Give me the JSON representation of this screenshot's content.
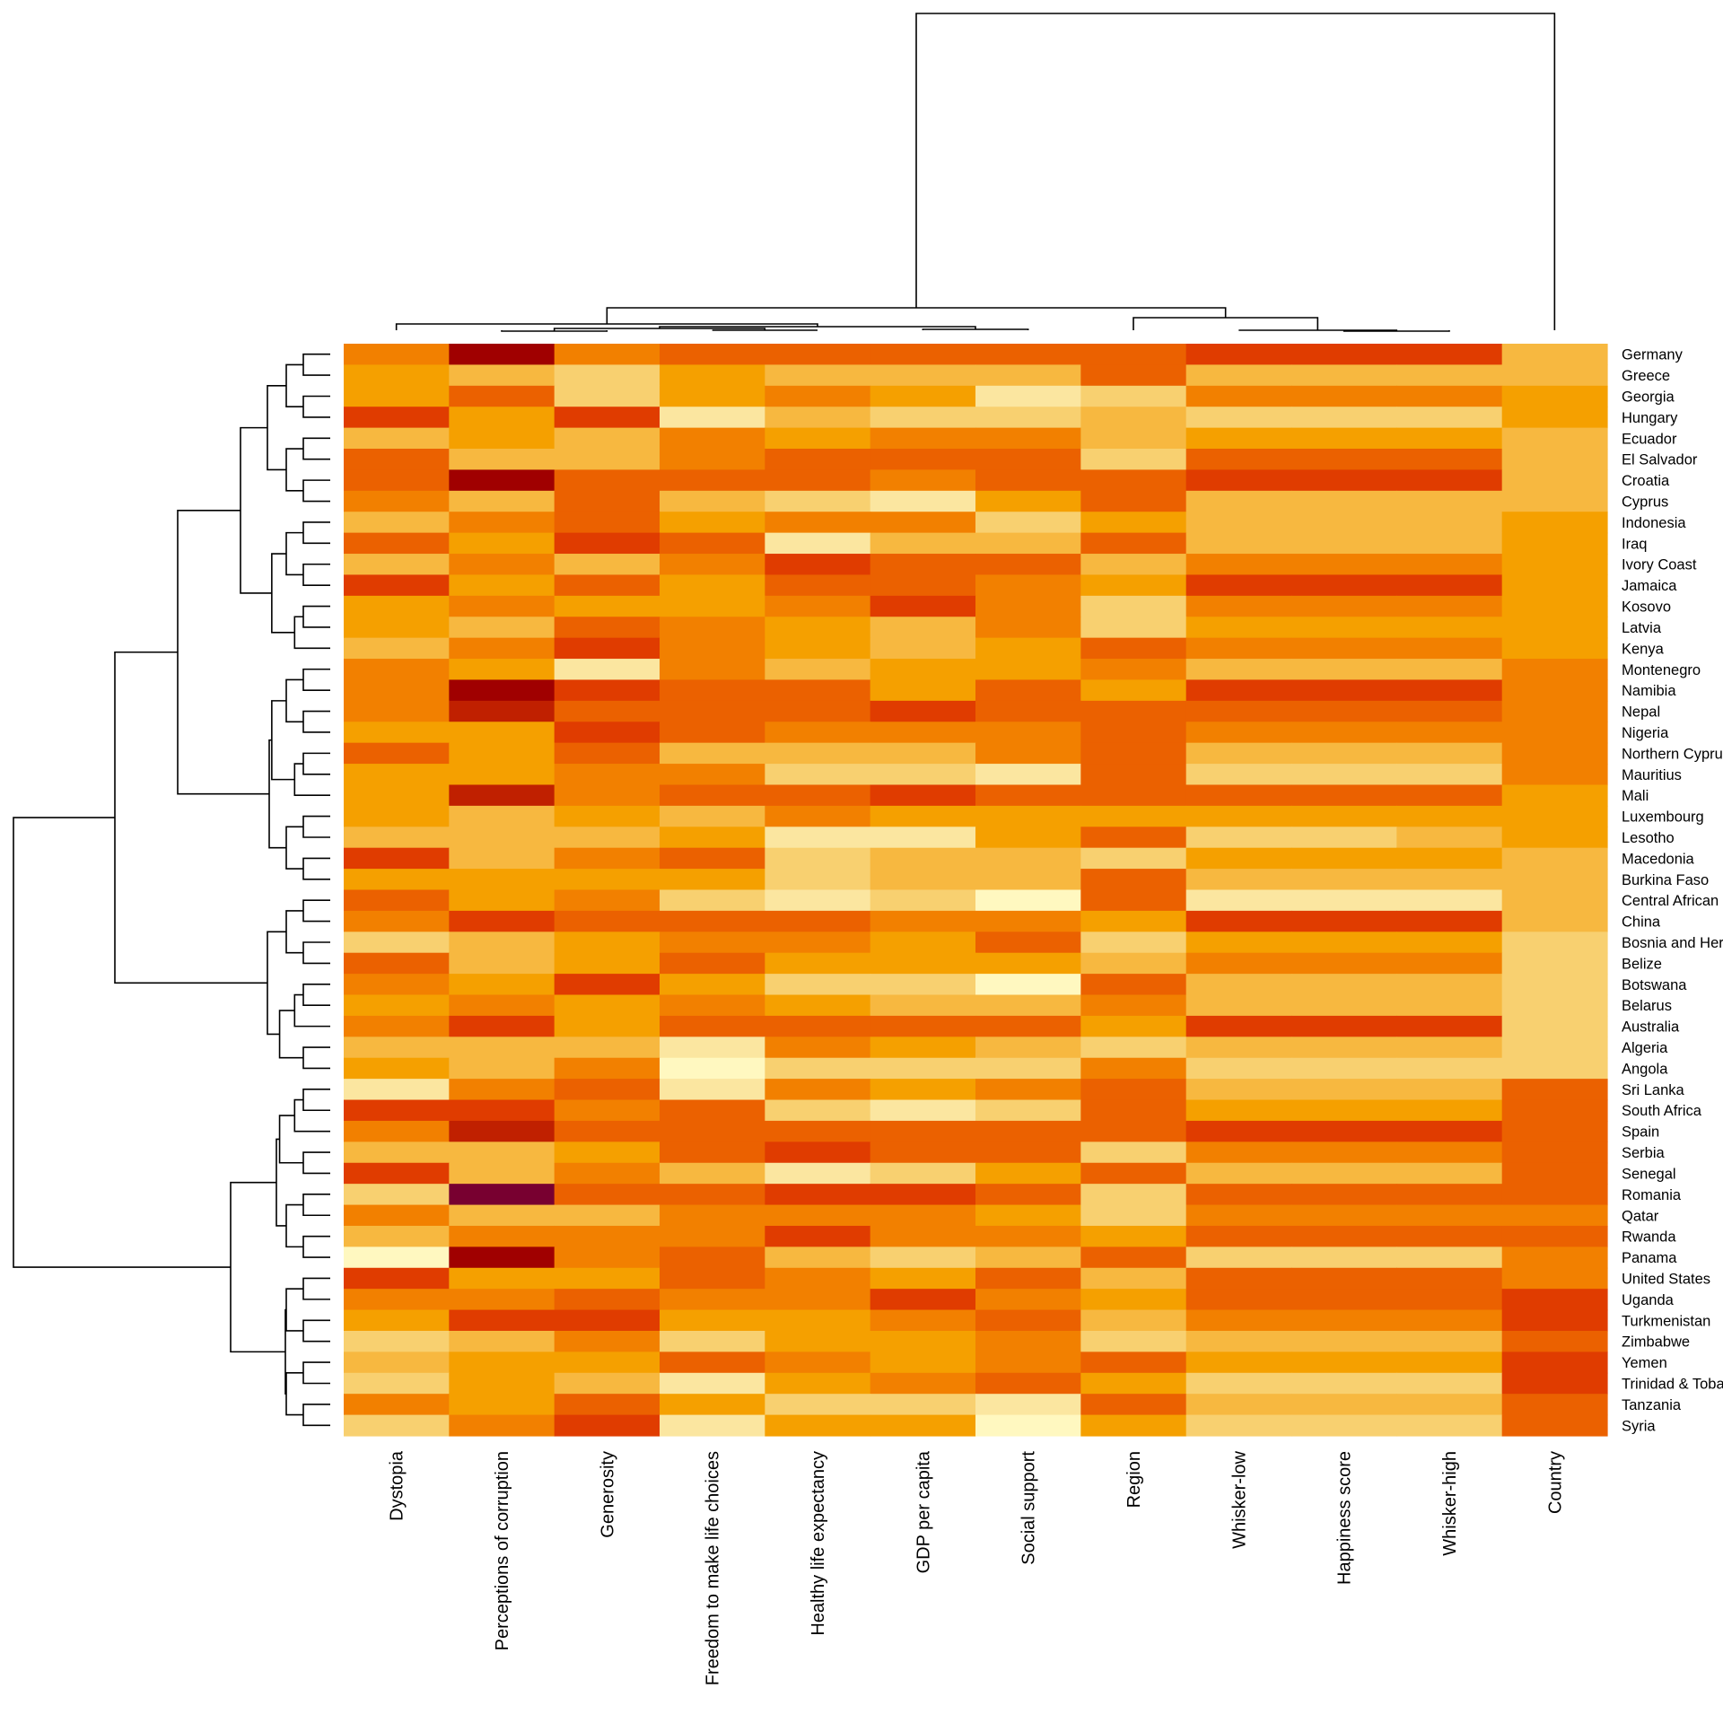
{
  "chart_data": {
    "type": "heatmap",
    "title": "",
    "value_scale": "relative level 0 (darkest red) to 10 (palest yellow)",
    "palette": [
      "#780030",
      "#A00000",
      "#C02000",
      "#E03C00",
      "#EB6100",
      "#F28000",
      "#F5A000",
      "#F7B840",
      "#F8D070",
      "#FBE6A0",
      "#FFF8C0"
    ],
    "columns": [
      "Dystopia",
      "Perceptions of corruption",
      "Generosity",
      "Freedom to make life choices",
      "Healthy life expectancy",
      "GDP per capita",
      "Social support",
      "Region",
      "Whisker-low",
      "Happiness score",
      "Whisker-high",
      "Country"
    ],
    "rows": [
      "Germany",
      "Greece",
      "Georgia",
      "Hungary",
      "Ecuador",
      "El Salvador",
      "Croatia",
      "Cyprus",
      "Indonesia",
      "Iraq",
      "Ivory Coast",
      "Jamaica",
      "Kosovo",
      "Latvia",
      "Kenya",
      "Montenegro",
      "Namibia",
      "Nepal",
      "Nigeria",
      "Northern Cyprus",
      "Mauritius",
      "Mali",
      "Luxembourg",
      "Lesotho",
      "Macedonia",
      "Burkina Faso",
      "Central African R",
      "China",
      "Bosnia and Herz",
      "Belize",
      "Botswana",
      "Belarus",
      "Australia",
      "Algeria",
      "Angola",
      "Sri Lanka",
      "South Africa",
      "Spain",
      "Serbia",
      "Senegal",
      "Romania",
      "Qatar",
      "Rwanda",
      "Panama",
      "United States",
      "Uganda",
      "Turkmenistan",
      "Zimbabwe",
      "Yemen",
      "Trinidad & Toba",
      "Tanzania",
      "Syria"
    ],
    "values": [
      [
        5,
        1,
        5,
        4,
        4,
        4,
        4,
        4,
        3,
        3,
        3,
        7
      ],
      [
        6,
        7,
        8,
        6,
        7,
        7,
        7,
        4,
        7,
        7,
        7,
        7
      ],
      [
        6,
        4,
        8,
        6,
        5,
        6,
        9,
        8,
        5,
        5,
        5,
        6
      ],
      [
        3,
        6,
        3,
        9,
        7,
        8,
        8,
        7,
        8,
        8,
        8,
        6
      ],
      [
        7,
        6,
        7,
        5,
        6,
        5,
        5,
        7,
        6,
        6,
        6,
        7
      ],
      [
        4,
        7,
        7,
        5,
        4,
        4,
        4,
        8,
        4,
        4,
        4,
        7
      ],
      [
        4,
        1,
        4,
        4,
        4,
        5,
        4,
        4,
        3,
        3,
        3,
        7
      ],
      [
        5,
        7,
        4,
        7,
        8,
        9,
        6,
        4,
        7,
        7,
        7,
        7
      ],
      [
        7,
        5,
        4,
        6,
        5,
        5,
        8,
        6,
        7,
        7,
        7,
        6
      ],
      [
        4,
        6,
        3,
        4,
        9,
        7,
        7,
        4,
        7,
        7,
        7,
        6
      ],
      [
        7,
        5,
        7,
        5,
        3,
        4,
        4,
        7,
        5,
        5,
        5,
        6
      ],
      [
        3,
        6,
        4,
        6,
        4,
        4,
        5,
        6,
        3,
        3,
        3,
        6
      ],
      [
        6,
        5,
        6,
        6,
        5,
        3,
        5,
        8,
        5,
        5,
        5,
        6
      ],
      [
        6,
        7,
        4,
        5,
        6,
        7,
        5,
        8,
        6,
        6,
        6,
        6
      ],
      [
        7,
        5,
        3,
        5,
        6,
        7,
        6,
        4,
        5,
        5,
        5,
        6
      ],
      [
        5,
        6,
        9,
        5,
        7,
        6,
        6,
        5,
        7,
        7,
        7,
        5
      ],
      [
        5,
        1,
        3,
        4,
        4,
        6,
        4,
        6,
        3,
        3,
        3,
        5
      ],
      [
        5,
        2,
        4,
        4,
        4,
        3,
        4,
        4,
        4,
        4,
        4,
        5
      ],
      [
        6,
        6,
        3,
        4,
        5,
        5,
        5,
        4,
        5,
        5,
        5,
        5
      ],
      [
        4,
        6,
        4,
        7,
        7,
        7,
        5,
        4,
        7,
        7,
        7,
        5
      ],
      [
        6,
        6,
        5,
        5,
        8,
        8,
        9,
        4,
        8,
        8,
        8,
        5
      ],
      [
        6,
        2,
        5,
        4,
        4,
        3,
        4,
        4,
        4,
        4,
        4,
        6
      ],
      [
        6,
        7,
        6,
        7,
        5,
        6,
        6,
        6,
        6,
        6,
        6,
        6
      ],
      [
        7,
        7,
        7,
        6,
        9,
        9,
        6,
        4,
        8,
        8,
        7,
        6
      ],
      [
        3,
        7,
        5,
        4,
        8,
        7,
        7,
        8,
        6,
        6,
        6,
        7
      ],
      [
        6,
        6,
        6,
        6,
        8,
        7,
        7,
        4,
        7,
        7,
        7,
        7
      ],
      [
        4,
        6,
        5,
        8,
        9,
        8,
        10,
        4,
        9,
        9,
        9,
        7
      ],
      [
        5,
        3,
        4,
        4,
        4,
        5,
        5,
        6,
        3,
        3,
        3,
        7
      ],
      [
        8,
        7,
        6,
        5,
        5,
        6,
        4,
        8,
        6,
        6,
        6,
        8
      ],
      [
        4,
        7,
        6,
        4,
        6,
        6,
        6,
        7,
        5,
        5,
        5,
        8
      ],
      [
        5,
        6,
        3,
        6,
        8,
        8,
        10,
        4,
        7,
        7,
        7,
        8
      ],
      [
        6,
        5,
        6,
        5,
        6,
        7,
        7,
        5,
        7,
        7,
        7,
        8
      ],
      [
        5,
        3,
        6,
        4,
        4,
        4,
        4,
        6,
        3,
        3,
        3,
        8
      ],
      [
        7,
        7,
        7,
        9,
        5,
        6,
        7,
        8,
        7,
        7,
        7,
        8
      ],
      [
        6,
        7,
        5,
        10,
        8,
        8,
        8,
        5,
        8,
        8,
        8,
        8
      ],
      [
        9,
        5,
        4,
        9,
        5,
        6,
        5,
        4,
        7,
        7,
        7,
        4
      ],
      [
        3,
        3,
        5,
        4,
        8,
        9,
        8,
        4,
        6,
        6,
        6,
        4
      ],
      [
        5,
        2,
        4,
        4,
        4,
        4,
        4,
        4,
        3,
        3,
        3,
        4
      ],
      [
        7,
        7,
        6,
        4,
        3,
        4,
        4,
        8,
        5,
        5,
        5,
        4
      ],
      [
        3,
        7,
        5,
        7,
        9,
        8,
        6,
        4,
        7,
        7,
        7,
        4
      ],
      [
        8,
        0,
        4,
        4,
        3,
        3,
        4,
        8,
        4,
        4,
        4,
        4
      ],
      [
        5,
        7,
        7,
        5,
        5,
        5,
        6,
        8,
        5,
        5,
        5,
        5
      ],
      [
        7,
        5,
        5,
        5,
        3,
        5,
        5,
        6,
        4,
        4,
        4,
        4
      ],
      [
        10,
        1,
        5,
        4,
        7,
        8,
        7,
        4,
        8,
        8,
        8,
        5
      ],
      [
        3,
        6,
        6,
        4,
        5,
        6,
        4,
        7,
        4,
        4,
        4,
        5
      ],
      [
        5,
        5,
        4,
        5,
        5,
        3,
        5,
        6,
        4,
        4,
        4,
        3
      ],
      [
        6,
        3,
        3,
        6,
        6,
        5,
        4,
        7,
        5,
        5,
        5,
        3
      ],
      [
        8,
        7,
        5,
        8,
        6,
        6,
        5,
        8,
        7,
        7,
        7,
        4
      ],
      [
        7,
        6,
        6,
        4,
        5,
        6,
        5,
        4,
        6,
        6,
        6,
        3
      ],
      [
        8,
        6,
        7,
        9,
        6,
        5,
        4,
        6,
        8,
        8,
        8,
        3
      ],
      [
        5,
        6,
        4,
        6,
        8,
        8,
        9,
        4,
        7,
        7,
        7,
        4
      ],
      [
        8,
        5,
        3,
        9,
        6,
        6,
        10,
        6,
        8,
        8,
        8,
        4
      ]
    ],
    "row_dendrogram": true,
    "column_dendrogram": true,
    "legend": "none"
  }
}
